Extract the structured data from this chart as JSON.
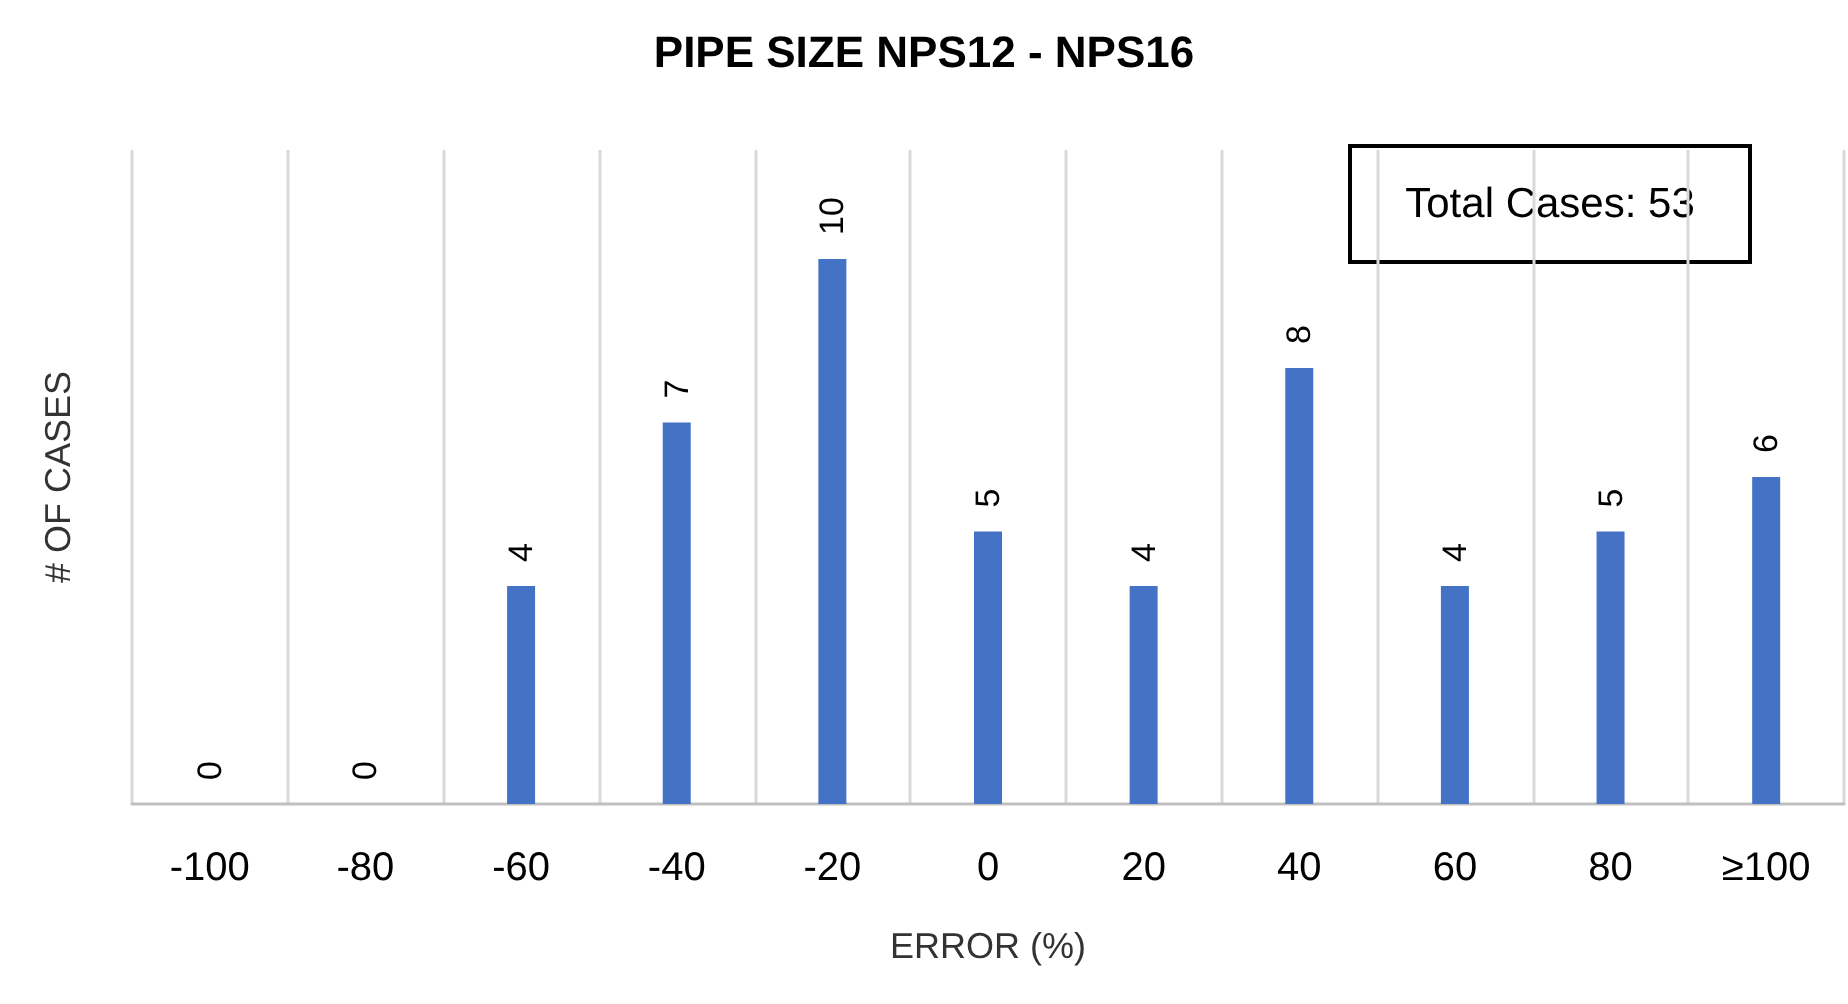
{
  "chart_data": {
    "type": "bar",
    "title": "PIPE SIZE NPS12 - NPS16",
    "xlabel": "ERROR (%)",
    "ylabel": "# OF CASES",
    "categories": [
      "-100",
      "-80",
      "-60",
      "-40",
      "-20",
      "0",
      "20",
      "40",
      "60",
      "80",
      "≥100"
    ],
    "series": [
      {
        "color": "#4472c4",
        "values": [
          0,
          0,
          4,
          7,
          10,
          5,
          4,
          8,
          4,
          5,
          6
        ]
      }
    ],
    "data_labels": true,
    "grid": "x",
    "annotations": [
      "Total Cases: 53"
    ]
  }
}
